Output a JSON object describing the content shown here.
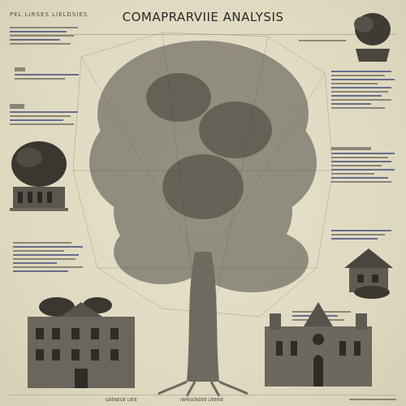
{
  "header": {
    "left_label": "PEL LIRSES LIELDSIES",
    "title": "COMAPRARVIIE ANALYSIS"
  },
  "footer": {
    "left_caption": "GRENESIE LIEIE",
    "center_caption": "INPRSONDEE LIEERIE"
  },
  "icons": {
    "central": "tree-illustration",
    "top_right": "tree-on-rock-icon",
    "left_tree": "tree-building-icon",
    "right_house": "house-icon",
    "bottom_left": "building-icon",
    "bottom_right": "cathedral-icon"
  }
}
